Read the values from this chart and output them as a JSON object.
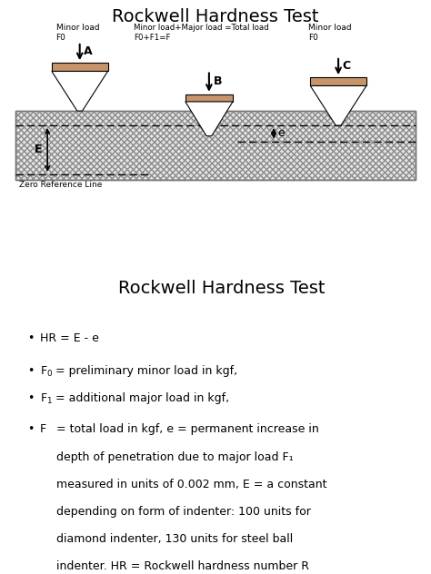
{
  "title1": "Rockwell Hardness Test",
  "title2": "Rockwell Hardness Test",
  "material_color": "#c8956a",
  "label_A": "A",
  "label_B": "B",
  "label_C": "C",
  "label_E": "E",
  "label_e": "e",
  "minor_load_left": "Minor load\nF0",
  "minor_load_right": "Minor load\nF0",
  "center_label": "Minor load+Major load =Total load\nF0+F1=F",
  "zero_ref_text": "Zero Reference Line"
}
